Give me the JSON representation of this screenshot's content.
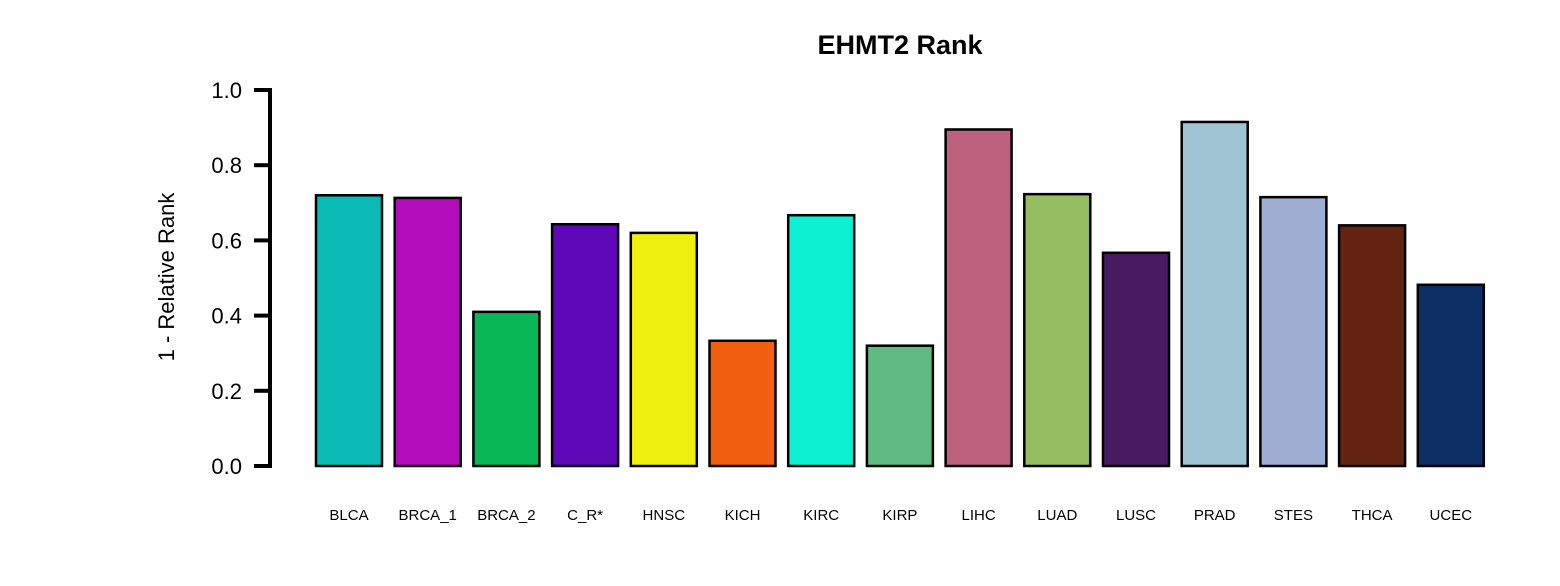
{
  "chart_data": {
    "type": "bar",
    "title": "EHMT2 Rank",
    "xlabel": "",
    "ylabel": "1 - Relative Rank",
    "ylim": [
      0,
      1
    ],
    "yticks": [
      "0.0",
      "0.2",
      "0.4",
      "0.6",
      "0.8",
      "1.0"
    ],
    "grid": false,
    "categories": [
      "BLCA",
      "BRCA_1",
      "BRCA_2",
      "C_R*",
      "HNSC",
      "KICH",
      "KIRC",
      "KIRP",
      "LIHC",
      "LUAD",
      "LUSC",
      "PRAD",
      "STES",
      "THCA",
      "UCEC"
    ],
    "values": [
      0.72,
      0.713,
      0.41,
      0.643,
      0.62,
      0.333,
      0.667,
      0.32,
      0.895,
      0.723,
      0.567,
      0.915,
      0.715,
      0.64,
      0.482
    ],
    "colors": [
      "#0abab5",
      "#b30cbb",
      "#09b757",
      "#5e08b7",
      "#eff00e",
      "#f25f10",
      "#0ef0d2",
      "#5fbb80",
      "#bd617f",
      "#96bc61",
      "#481b60",
      "#a0c4d3",
      "#a0aed3",
      "#652412",
      "#0e2f65"
    ]
  }
}
